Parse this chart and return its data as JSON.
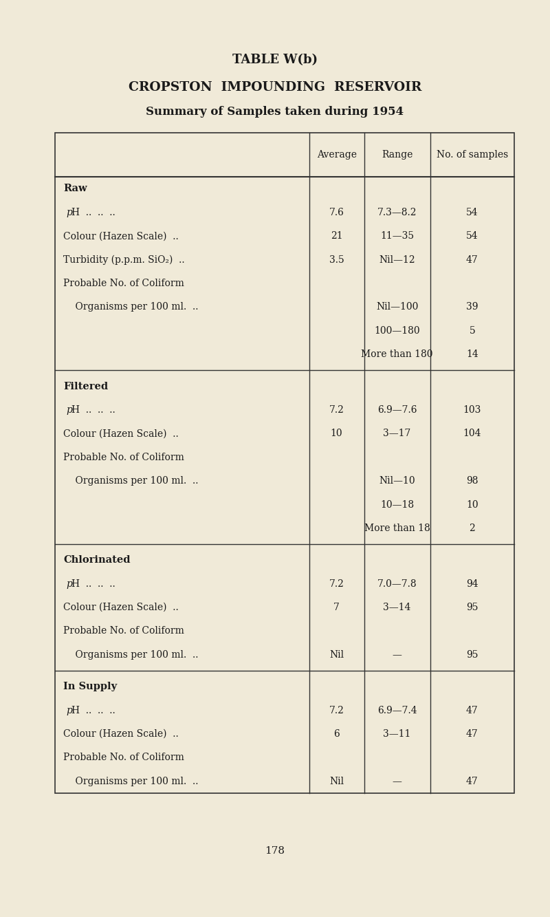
{
  "bg_color": "#f0ead8",
  "title1": "TABLE W(b)",
  "title2": "CROPSTON  IMPOUNDING  RESERVOIR",
  "title3": "Summary of Samples taken during 1954",
  "page_number": "178",
  "col_headers": [
    "Average",
    "Range",
    "No. of samples"
  ],
  "sections": [
    {
      "section_label": "Raw",
      "row_count": 8,
      "rows": [
        {
          "label": "pH  ..  ..  ..",
          "ph": true,
          "avg": "7.6",
          "range": "7.3—8.2",
          "n": "54"
        },
        {
          "label": "Colour (Hazen Scale)  ..",
          "ph": false,
          "avg": "21",
          "range": "11—35",
          "n": "54"
        },
        {
          "label": "Turbidity (p.p.m. SiO₂)  ..",
          "ph": false,
          "avg": "3.5",
          "range": "Nil—12",
          "n": "47"
        },
        {
          "label": "Probable No. of Coliform",
          "ph": false,
          "avg": "",
          "range": "",
          "n": ""
        },
        {
          "label": "    Organisms per 100 ml.  ..",
          "ph": false,
          "avg": "",
          "range": "Nil—100",
          "n": "39"
        },
        {
          "label": "",
          "ph": false,
          "avg": "",
          "range": "100—180",
          "n": "5"
        },
        {
          "label": "",
          "ph": false,
          "avg": "",
          "range": "More than 180",
          "n": "14"
        }
      ]
    },
    {
      "section_label": "Filtered",
      "row_count": 7,
      "rows": [
        {
          "label": "pH  ..  ..  ..",
          "ph": true,
          "avg": "7.2",
          "range": "6.9—7.6",
          "n": "103"
        },
        {
          "label": "Colour (Hazen Scale)  ..",
          "ph": false,
          "avg": "10",
          "range": "3—17",
          "n": "104"
        },
        {
          "label": "Probable No. of Coliform",
          "ph": false,
          "avg": "",
          "range": "",
          "n": ""
        },
        {
          "label": "    Organisms per 100 ml.  ..",
          "ph": false,
          "avg": "",
          "range": "Nil—10",
          "n": "98"
        },
        {
          "label": "",
          "ph": false,
          "avg": "",
          "range": "10—18",
          "n": "10"
        },
        {
          "label": "",
          "ph": false,
          "avg": "",
          "range": "More than 18",
          "n": "2"
        }
      ]
    },
    {
      "section_label": "Chlorinated",
      "row_count": 5,
      "rows": [
        {
          "label": "pH  ..  ..  ..",
          "ph": true,
          "avg": "7.2",
          "range": "7.0—7.8",
          "n": "94"
        },
        {
          "label": "Colour (Hazen Scale)  ..",
          "ph": false,
          "avg": "7",
          "range": "3—14",
          "n": "95"
        },
        {
          "label": "Probable No. of Coliform",
          "ph": false,
          "avg": "",
          "range": "",
          "n": ""
        },
        {
          "label": "    Organisms per 100 ml.  ..",
          "ph": false,
          "avg": "Nil",
          "range": "—",
          "n": "95"
        }
      ]
    },
    {
      "section_label": "In Supply",
      "row_count": 5,
      "rows": [
        {
          "label": "pH  ..  ..  ..",
          "ph": true,
          "avg": "7.2",
          "range": "6.9—7.4",
          "n": "47"
        },
        {
          "label": "Colour (Hazen Scale)  ..",
          "ph": false,
          "avg": "6",
          "range": "3—11",
          "n": "47"
        },
        {
          "label": "Probable No. of Coliform",
          "ph": false,
          "avg": "",
          "range": "",
          "n": ""
        },
        {
          "label": "    Organisms per 100 ml.  ..",
          "ph": false,
          "avg": "Nil",
          "range": "—",
          "n": "47"
        }
      ]
    }
  ]
}
